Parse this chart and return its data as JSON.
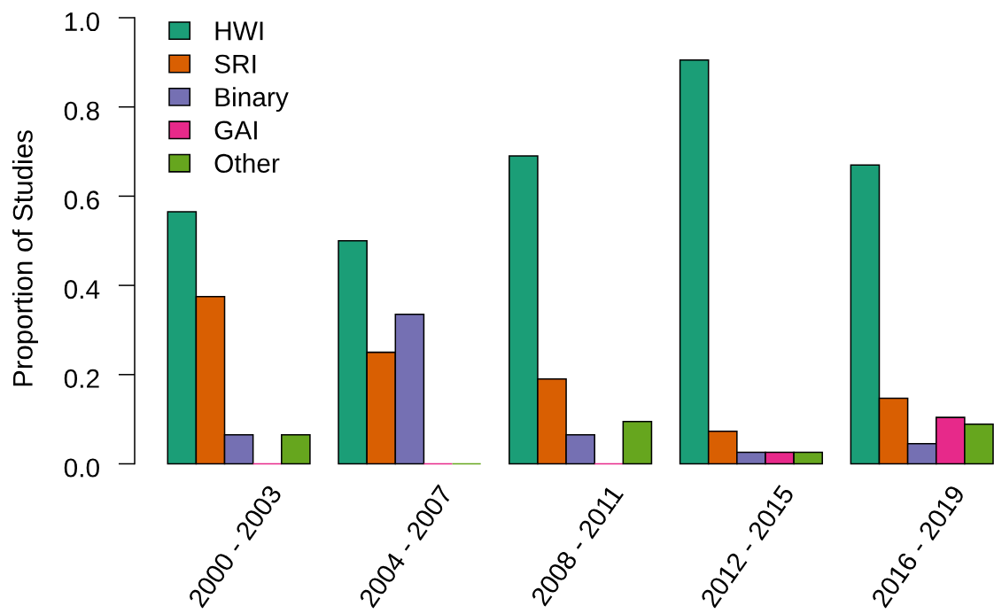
{
  "chart_data": {
    "type": "bar",
    "ylabel": "Proportion of Studies",
    "categories": [
      "2000 - 2003",
      "2004 - 2007",
      "2008 - 2011",
      "2012 - 2015",
      "2016 - 2019"
    ],
    "series": [
      {
        "name": "HWI",
        "color": "#1b9e77",
        "values": [
          0.565,
          0.5,
          0.69,
          0.905,
          0.67
        ]
      },
      {
        "name": "SRI",
        "color": "#d95f02",
        "values": [
          0.375,
          0.25,
          0.19,
          0.073,
          0.147
        ]
      },
      {
        "name": "Binary",
        "color": "#7570b3",
        "values": [
          0.065,
          0.335,
          0.065,
          0.026,
          0.045
        ]
      },
      {
        "name": "GAI",
        "color": "#e7298a",
        "values": [
          0,
          0,
          0,
          0.026,
          0.104
        ]
      },
      {
        "name": "Other",
        "color": "#66a61e",
        "values": [
          0.065,
          0,
          0.095,
          0.026,
          0.089
        ]
      }
    ],
    "ylim": [
      0,
      1
    ],
    "yticks": [
      {
        "value": 0,
        "label": "0.0"
      },
      {
        "value": 0.2,
        "label": "0.2"
      },
      {
        "value": 0.4,
        "label": "0.4"
      },
      {
        "value": 0.6,
        "label": "0.6"
      },
      {
        "value": 0.8,
        "label": "0.8"
      },
      {
        "value": 1,
        "label": "1.0"
      }
    ],
    "grid": false,
    "legend": "top left"
  }
}
